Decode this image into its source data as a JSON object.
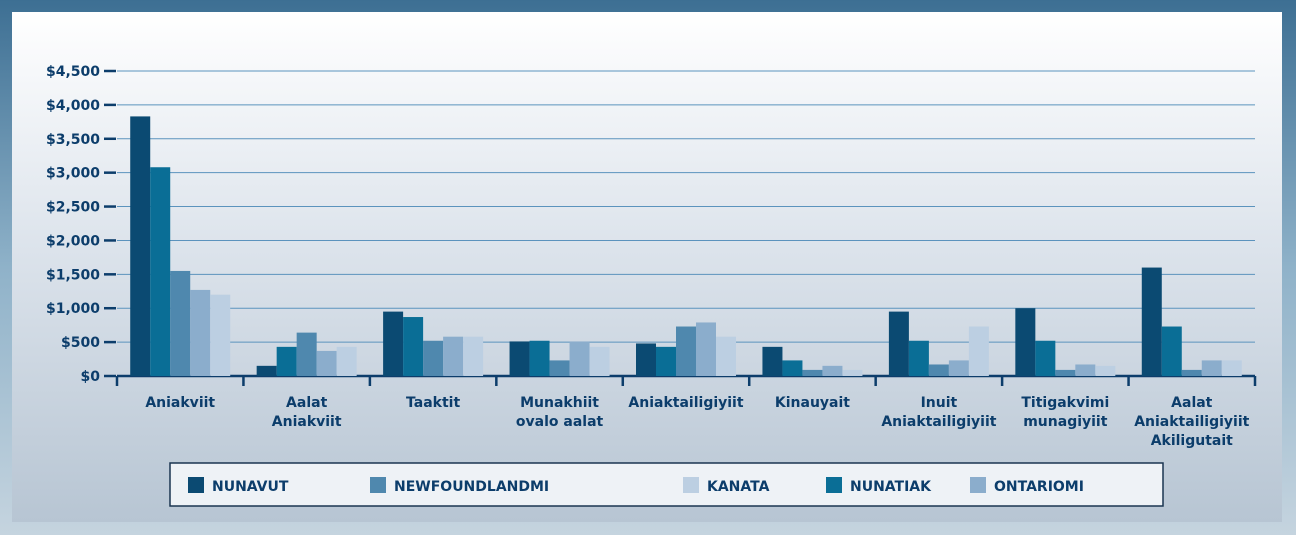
{
  "chart_data": {
    "type": "bar",
    "categories": [
      [
        "Aniakviit"
      ],
      [
        "Aalat",
        "Aniakviit"
      ],
      [
        "Taaktit"
      ],
      [
        "Munakhiit",
        "ovalo aalat"
      ],
      [
        "Aniaktailigiyiit"
      ],
      [
        "Kinauyait"
      ],
      [
        "Inuit",
        "Aniaktailigiyiit"
      ],
      [
        "Titigakvimi",
        "munagiyiit"
      ],
      [
        "Aalat",
        "Aniaktailigiyiit",
        "Akiligutait"
      ]
    ],
    "series": [
      {
        "name": "NUNAVUT",
        "color": "#0b4a72",
        "values": [
          3830,
          150,
          950,
          510,
          480,
          430,
          950,
          1000,
          1600
        ]
      },
      {
        "name": "NEWFOUNDLANDMI",
        "color": "#4f88ae",
        "values": [
          1550,
          640,
          520,
          230,
          730,
          90,
          170,
          90,
          90
        ]
      },
      {
        "name": "KANATA",
        "color": "#bccfe2",
        "values": [
          1200,
          430,
          580,
          430,
          580,
          90,
          730,
          150,
          230
        ]
      },
      {
        "name": "NUNATIAK",
        "color": "#0a6e96",
        "values": [
          3080,
          430,
          870,
          520,
          430,
          230,
          520,
          520,
          730
        ]
      },
      {
        "name": "ONTARIOMI",
        "color": "#8badcc",
        "values": [
          1270,
          370,
          580,
          510,
          790,
          150,
          230,
          170,
          230
        ]
      }
    ],
    "ylim": [
      0,
      4500
    ],
    "yticks": [
      {
        "value": 0,
        "label": "$0"
      },
      {
        "value": 500,
        "label": "$500"
      },
      {
        "value": 1000,
        "label": "$1,000"
      },
      {
        "value": 1500,
        "label": "$1,500"
      },
      {
        "value": 2000,
        "label": "$2,000"
      },
      {
        "value": 2500,
        "label": "$2,500"
      },
      {
        "value": 3000,
        "label": "$3,000"
      },
      {
        "value": 3500,
        "label": "$3,500"
      },
      {
        "value": 4000,
        "label": "$4,000"
      },
      {
        "value": 4500,
        "label": "$4,500"
      }
    ],
    "grid": true
  }
}
